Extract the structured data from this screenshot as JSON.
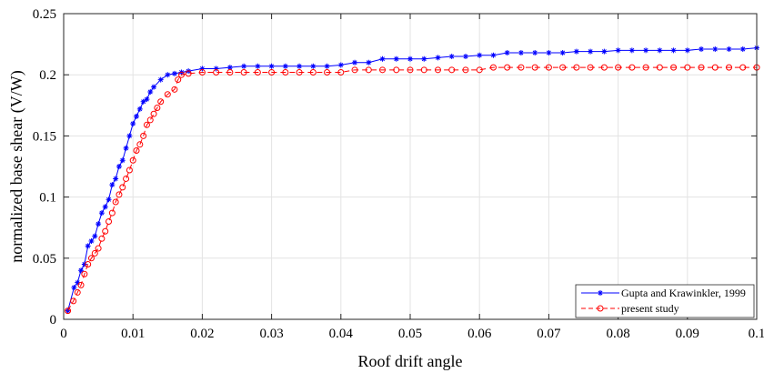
{
  "chart_data": {
    "type": "line",
    "xlabel": "Roof drift angle",
    "ylabel": "normalized base shear (V/W)",
    "xlim": [
      0,
      0.1
    ],
    "ylim": [
      0,
      0.25
    ],
    "xticks": [
      0,
      0.01,
      0.02,
      0.03,
      0.04,
      0.05,
      0.06,
      0.07,
      0.08,
      0.09,
      0.1
    ],
    "xtick_labels": [
      "0",
      "0.01",
      "0.02",
      "0.03",
      "0.04",
      "0.05",
      "0.06",
      "0.07",
      "0.08",
      "0.09",
      "0.1"
    ],
    "yticks": [
      0,
      0.05,
      0.1,
      0.15,
      0.2,
      0.25
    ],
    "ytick_labels": [
      "0",
      "0.05",
      "0.1",
      "0.15",
      "0.2",
      "0.25"
    ],
    "grid": true,
    "legend_position": "bottom-right",
    "series": [
      {
        "name": "Gupta and Krawinkler, 1999",
        "color": "#0000ff",
        "line_style": "solid",
        "marker": "star",
        "x": [
          0.0006,
          0.0015,
          0.002,
          0.0025,
          0.003,
          0.0035,
          0.004,
          0.0045,
          0.005,
          0.0055,
          0.006,
          0.0065,
          0.007,
          0.0075,
          0.008,
          0.0085,
          0.009,
          0.0095,
          0.01,
          0.0105,
          0.011,
          0.0115,
          0.012,
          0.0125,
          0.013,
          0.014,
          0.015,
          0.016,
          0.017,
          0.018,
          0.02,
          0.022,
          0.024,
          0.026,
          0.028,
          0.03,
          0.032,
          0.034,
          0.036,
          0.038,
          0.04,
          0.042,
          0.044,
          0.046,
          0.048,
          0.05,
          0.052,
          0.054,
          0.056,
          0.058,
          0.06,
          0.062,
          0.064,
          0.066,
          0.068,
          0.07,
          0.072,
          0.074,
          0.076,
          0.078,
          0.08,
          0.082,
          0.084,
          0.086,
          0.088,
          0.09,
          0.092,
          0.094,
          0.096,
          0.098,
          0.1
        ],
        "y": [
          0.007,
          0.026,
          0.03,
          0.04,
          0.045,
          0.06,
          0.064,
          0.068,
          0.078,
          0.087,
          0.092,
          0.098,
          0.11,
          0.115,
          0.125,
          0.13,
          0.14,
          0.15,
          0.16,
          0.166,
          0.172,
          0.178,
          0.18,
          0.186,
          0.19,
          0.196,
          0.2,
          0.201,
          0.202,
          0.203,
          0.205,
          0.205,
          0.206,
          0.207,
          0.207,
          0.207,
          0.207,
          0.207,
          0.207,
          0.207,
          0.208,
          0.21,
          0.21,
          0.213,
          0.213,
          0.213,
          0.213,
          0.214,
          0.215,
          0.215,
          0.216,
          0.216,
          0.218,
          0.218,
          0.218,
          0.218,
          0.218,
          0.219,
          0.219,
          0.219,
          0.22,
          0.22,
          0.22,
          0.22,
          0.22,
          0.22,
          0.221,
          0.221,
          0.221,
          0.221,
          0.222
        ]
      },
      {
        "name": "present study",
        "color": "#ff0000",
        "line_style": "dashed",
        "marker": "circle",
        "x": [
          0.0006,
          0.0014,
          0.002,
          0.0025,
          0.003,
          0.0035,
          0.004,
          0.0045,
          0.005,
          0.0055,
          0.006,
          0.0065,
          0.007,
          0.0075,
          0.008,
          0.0085,
          0.009,
          0.0095,
          0.01,
          0.0105,
          0.011,
          0.0115,
          0.012,
          0.0125,
          0.013,
          0.0135,
          0.014,
          0.015,
          0.016,
          0.0165,
          0.017,
          0.018,
          0.02,
          0.022,
          0.024,
          0.026,
          0.028,
          0.03,
          0.032,
          0.034,
          0.036,
          0.038,
          0.04,
          0.042,
          0.044,
          0.046,
          0.048,
          0.05,
          0.052,
          0.054,
          0.056,
          0.058,
          0.06,
          0.062,
          0.064,
          0.066,
          0.068,
          0.07,
          0.072,
          0.074,
          0.076,
          0.078,
          0.08,
          0.082,
          0.084,
          0.086,
          0.088,
          0.09,
          0.092,
          0.094,
          0.096,
          0.098,
          0.1
        ],
        "y": [
          0.007,
          0.015,
          0.022,
          0.028,
          0.037,
          0.045,
          0.05,
          0.054,
          0.058,
          0.066,
          0.072,
          0.08,
          0.087,
          0.096,
          0.102,
          0.108,
          0.115,
          0.122,
          0.13,
          0.138,
          0.143,
          0.15,
          0.159,
          0.163,
          0.168,
          0.173,
          0.178,
          0.184,
          0.188,
          0.196,
          0.2,
          0.201,
          0.202,
          0.202,
          0.202,
          0.202,
          0.202,
          0.202,
          0.202,
          0.202,
          0.202,
          0.202,
          0.202,
          0.204,
          0.204,
          0.204,
          0.204,
          0.204,
          0.204,
          0.204,
          0.204,
          0.204,
          0.204,
          0.206,
          0.206,
          0.206,
          0.206,
          0.206,
          0.206,
          0.206,
          0.206,
          0.206,
          0.206,
          0.206,
          0.206,
          0.206,
          0.206,
          0.206,
          0.206,
          0.206,
          0.206,
          0.206,
          0.206
        ]
      }
    ]
  }
}
